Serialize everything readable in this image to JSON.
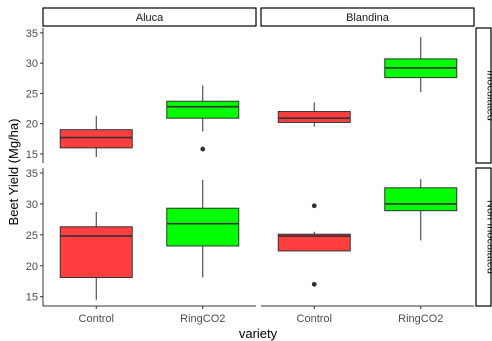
{
  "chart_data": {
    "type": "boxplot",
    "title": "",
    "xlabel": "variety",
    "ylabel": "Beet Yield (Mg/ha)",
    "ylim": [
      13.5,
      35.8
    ],
    "yticks": [
      15,
      20,
      25,
      30,
      35
    ],
    "categories": [
      "Control",
      "RingCO2"
    ],
    "category_colors": {
      "Control": "#FF3F3F",
      "RingCO2": "#00FF00"
    },
    "columns": [
      "Aluca",
      "Blandina"
    ],
    "rows": [
      "Inoculated",
      "Non Inoculated"
    ],
    "grid": false,
    "legend": "none",
    "facets": [
      {
        "column": "Aluca",
        "row": "Inoculated",
        "boxes": [
          {
            "category": "Control",
            "min": 14.5,
            "q1": 16.0,
            "median": 17.7,
            "q3": 19.0,
            "max": 21.3,
            "outliers": []
          },
          {
            "category": "RingCO2",
            "min": 18.7,
            "q1": 20.9,
            "median": 22.8,
            "q3": 23.7,
            "max": 26.3,
            "outliers": [
              15.8
            ]
          }
        ]
      },
      {
        "column": "Blandina",
        "row": "Inoculated",
        "boxes": [
          {
            "category": "Control",
            "min": 19.5,
            "q1": 20.2,
            "median": 20.9,
            "q3": 22.0,
            "max": 23.5,
            "outliers": []
          },
          {
            "category": "RingCO2",
            "min": 25.2,
            "q1": 27.6,
            "median": 29.2,
            "q3": 30.7,
            "max": 34.3,
            "outliers": []
          }
        ]
      },
      {
        "column": "Aluca",
        "row": "Non Inoculated",
        "boxes": [
          {
            "category": "Control",
            "min": 14.5,
            "q1": 18.1,
            "median": 24.8,
            "q3": 26.3,
            "max": 28.7,
            "outliers": []
          },
          {
            "category": "RingCO2",
            "min": 18.1,
            "q1": 23.2,
            "median": 26.8,
            "q3": 29.3,
            "max": 33.9,
            "outliers": []
          }
        ]
      },
      {
        "column": "Blandina",
        "row": "Non Inoculated",
        "boxes": [
          {
            "category": "Control",
            "min": 22.4,
            "q1": 22.4,
            "median": 24.8,
            "q3": 25.1,
            "max": 25.5,
            "outliers": [
              29.7,
              17.0
            ]
          },
          {
            "category": "RingCO2",
            "min": 24.1,
            "q1": 28.9,
            "median": 30.0,
            "q3": 32.6,
            "max": 34.0,
            "outliers": []
          }
        ]
      }
    ]
  }
}
